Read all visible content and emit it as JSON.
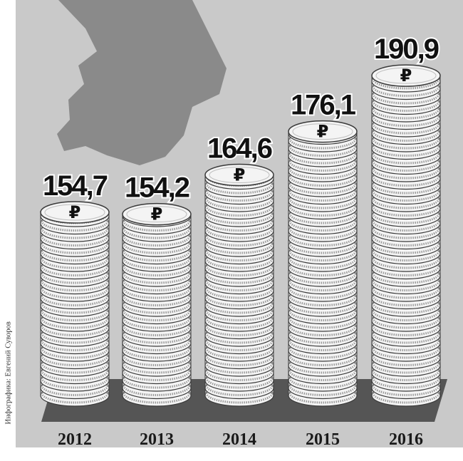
{
  "credit": "Инфографика: Евгений Суворов",
  "colors": {
    "background": "#c9c9c9",
    "map": "#8a8a8a",
    "floor": "#555555",
    "coin": "#f4f4f4",
    "coin_edge": "#3a3a3a"
  },
  "icons": {
    "coin": "ruble-coin-icon",
    "ruble_sign": "₽"
  },
  "chart_data": {
    "type": "bar",
    "categories": [
      "2012",
      "2013",
      "2014",
      "2015",
      "2016"
    ],
    "values": [
      154.7,
      154.2,
      164.6,
      176.1,
      190.9
    ],
    "value_labels": [
      "154,7",
      "154,2",
      "164,6",
      "176,1",
      "190,9"
    ],
    "bar_style": "stacked coins with ruble sign",
    "grid": false
  }
}
